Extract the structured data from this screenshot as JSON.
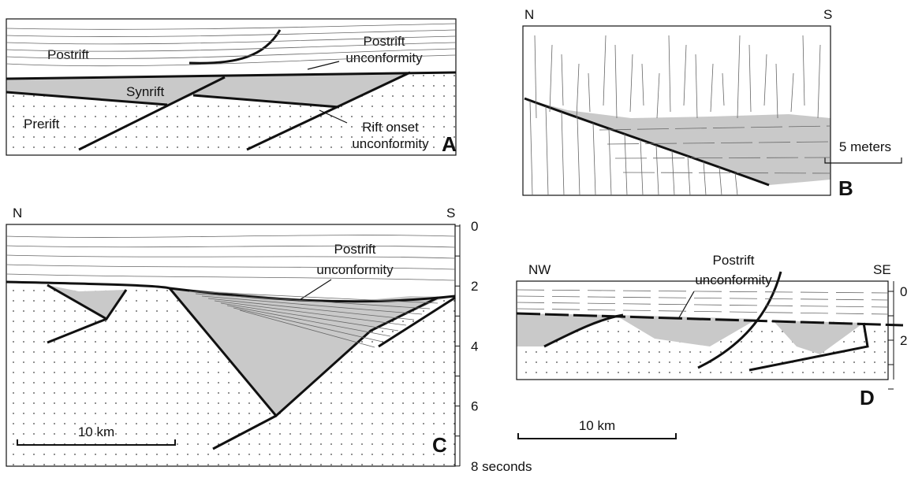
{
  "panels": {
    "A": {
      "letter": "A",
      "labels": {
        "postrift": "Postrift",
        "postrift_unconformity": [
          "Postrift",
          "unconformity"
        ],
        "synrift": "Synrift",
        "prerift": "Prerift",
        "rift_onset_unconformity": [
          "Rift onset",
          "unconformity"
        ]
      }
    },
    "B": {
      "letter": "B",
      "left_direction": "N",
      "right_direction": "S",
      "scale_label": "5 meters"
    },
    "C": {
      "letter": "C",
      "left_direction": "N",
      "right_direction": "S",
      "postrift_unconformity": [
        "Postrift",
        "unconformity"
      ],
      "scale_label": "10 km",
      "depth_axis": [
        "0",
        "2",
        "4",
        "6",
        "8 seconds"
      ]
    },
    "D": {
      "letter": "D",
      "left_direction": "NW",
      "right_direction": "SE",
      "postrift_unconformity": [
        "Postrift",
        "unconformity"
      ],
      "scale_label": "10 km",
      "depth_axis": [
        "0",
        "2"
      ]
    }
  }
}
